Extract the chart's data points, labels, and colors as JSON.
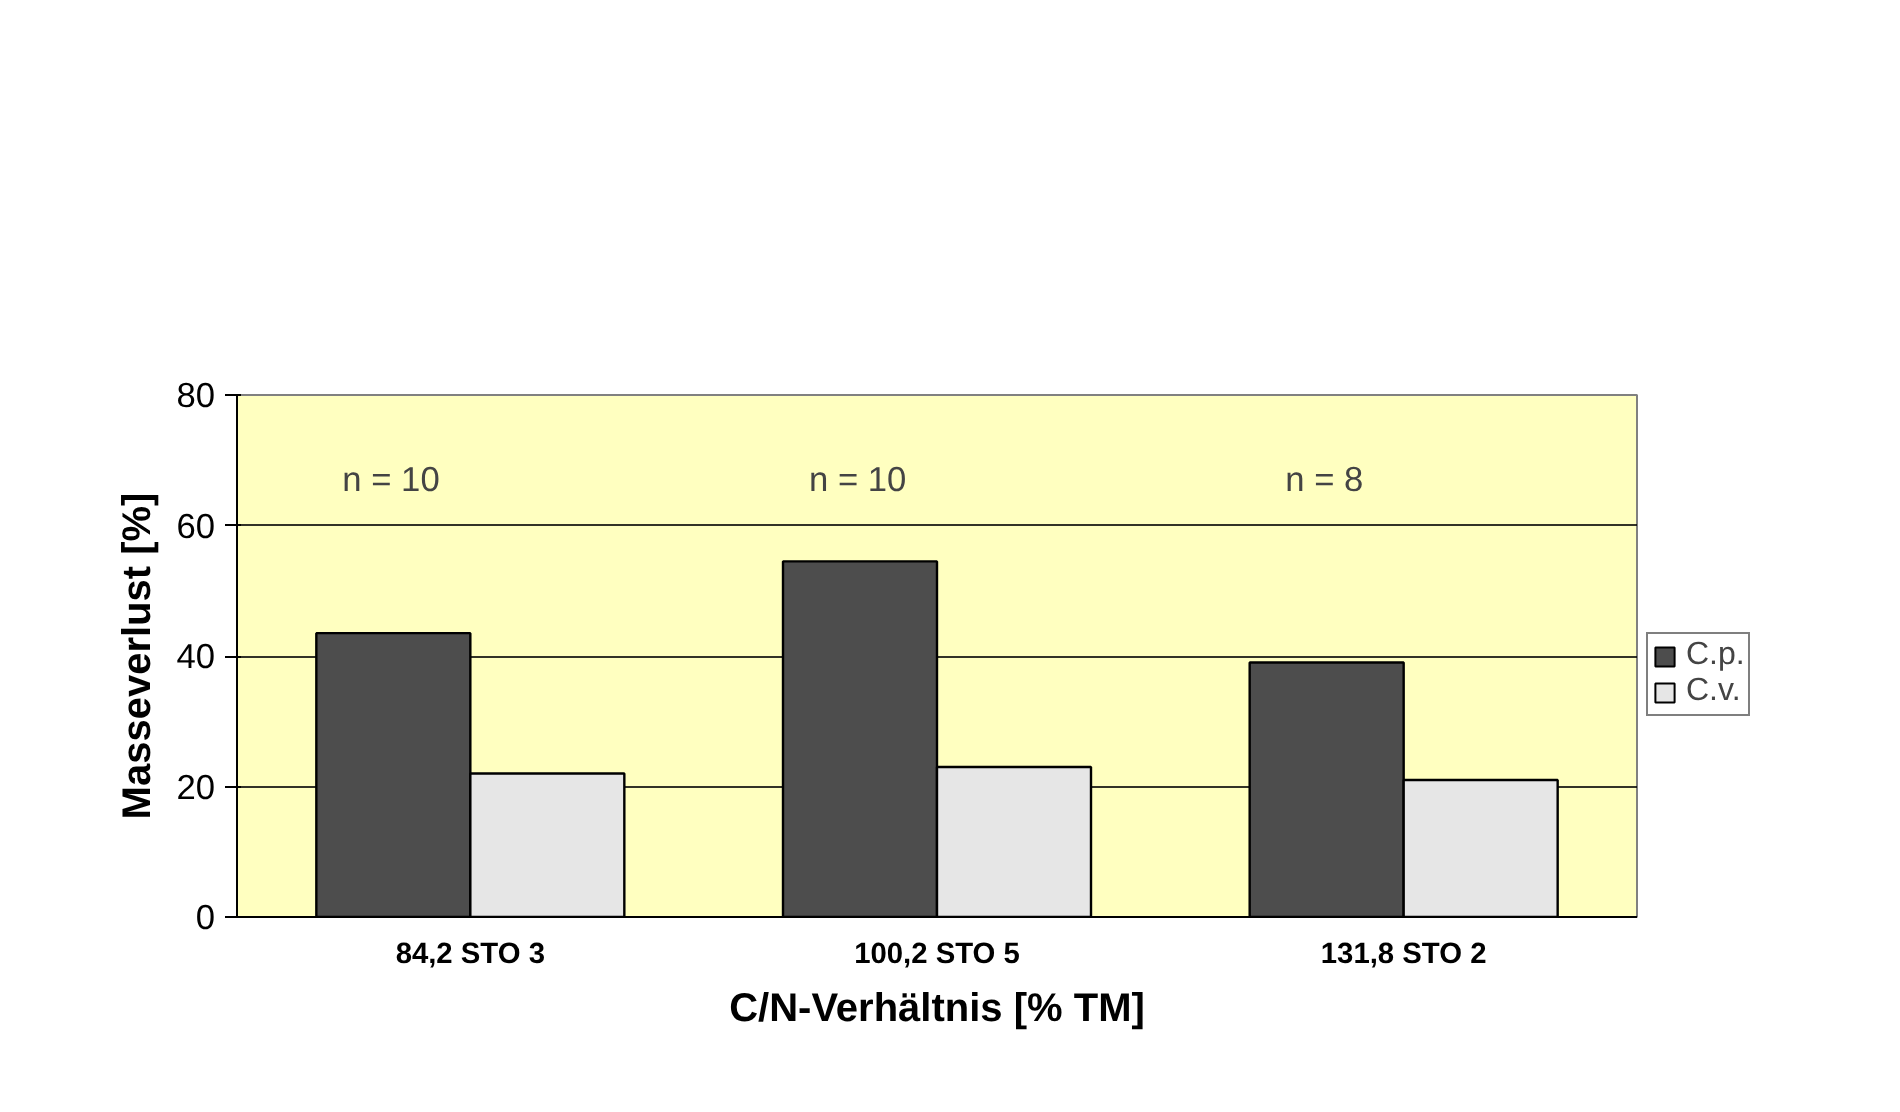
{
  "chart_data": {
    "type": "bar",
    "xlabel": "C/N-Verhältnis [% TM]",
    "ylabel": "Masseverlust [%]",
    "categories": [
      "84,2 STO 3",
      "100,2 STO 5",
      "131,8 STO 2"
    ],
    "series": [
      {
        "name": "C.p.",
        "color": "#4d4d4d",
        "values": [
          43.5,
          54.5,
          39
        ]
      },
      {
        "name": "C.v.",
        "color": "#e6e6e6",
        "values": [
          22,
          23,
          21
        ]
      }
    ],
    "ylim": [
      0,
      80
    ],
    "yticks": [
      0,
      20,
      40,
      60,
      80
    ],
    "grid": "y",
    "legend": "right",
    "annotations": [
      "n = 10",
      "n = 10",
      "n = 8"
    ]
  }
}
